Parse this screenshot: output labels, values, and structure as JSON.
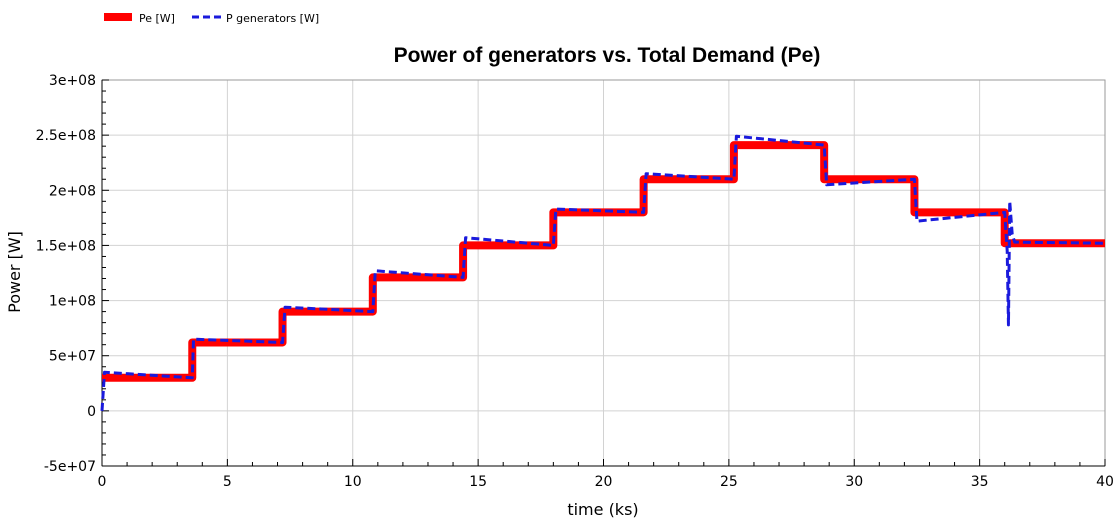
{
  "chart_data": {
    "type": "line",
    "title": "Power of generators vs. Total Demand (Pe)",
    "xlabel": "time (ks)",
    "ylabel": "Power [W]",
    "xlim": [
      0,
      40
    ],
    "ylim": [
      -50000000,
      300000000
    ],
    "x_ticks": [
      0,
      5,
      10,
      15,
      20,
      25,
      30,
      35,
      40
    ],
    "x_tick_labels": [
      "0",
      "5",
      "10",
      "15",
      "20",
      "25",
      "30",
      "35",
      "40"
    ],
    "y_ticks": [
      -50000000,
      0,
      50000000,
      100000000,
      150000000,
      200000000,
      250000000,
      300000000
    ],
    "y_tick_labels": [
      "-5e+07",
      "0",
      "5e+07",
      "1e+08",
      "1.5e+08",
      "2e+08",
      "2.5e+08",
      "3e+08"
    ],
    "grid": true,
    "legend_position": "top-left",
    "series": [
      {
        "name": "Pe [W]",
        "color": "#ff0000",
        "style": "solid",
        "x": [
          0,
          3.6,
          3.6,
          7.2,
          7.2,
          10.8,
          10.8,
          14.4,
          14.4,
          18.0,
          18.0,
          21.6,
          21.6,
          25.2,
          25.2,
          28.8,
          28.8,
          32.4,
          32.4,
          36.0,
          36.0,
          40
        ],
        "y": [
          30000000,
          30000000,
          62000000,
          62000000,
          90000000,
          90000000,
          121000000,
          121000000,
          150000000,
          150000000,
          180000000,
          180000000,
          210000000,
          210000000,
          241000000,
          241000000,
          210000000,
          210000000,
          180000000,
          180000000,
          152000000,
          152000000
        ]
      },
      {
        "name": "P generators [W]",
        "color": "#1a1adc",
        "style": "dashed",
        "x": [
          0,
          0.1,
          3.6,
          3.6,
          3.65,
          7.2,
          7.2,
          7.3,
          10.8,
          10.8,
          10.9,
          14.4,
          14.4,
          14.5,
          18.0,
          18.0,
          18.1,
          21.6,
          21.6,
          21.7,
          25.2,
          25.2,
          25.3,
          28.8,
          28.8,
          28.9,
          32.4,
          32.4,
          32.5,
          36.0,
          36.0,
          36.1,
          36.15,
          36.2,
          36.3,
          36.4,
          40
        ],
        "y": [
          0,
          35000000,
          30000000,
          30000000,
          65000000,
          62000000,
          62000000,
          94000000,
          90000000,
          90000000,
          127000000,
          121000000,
          121000000,
          157000000,
          150000000,
          150000000,
          183000000,
          180000000,
          180000000,
          215000000,
          210000000,
          210000000,
          249000000,
          241000000,
          241000000,
          205000000,
          210000000,
          210000000,
          172000000,
          180000000,
          180000000,
          145000000,
          78000000,
          190000000,
          160000000,
          153000000,
          152000000
        ]
      }
    ]
  }
}
